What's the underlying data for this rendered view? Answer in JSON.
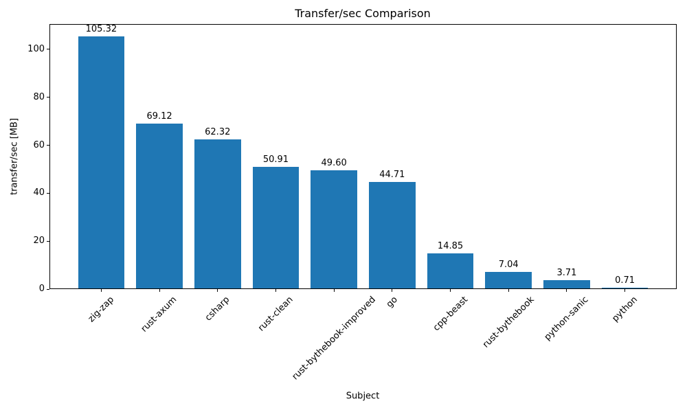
{
  "chart_data": {
    "type": "bar",
    "title": "Transfer/sec Comparison",
    "xlabel": "Subject",
    "ylabel": "transfer/sec [MB]",
    "categories": [
      "zig-zap",
      "rust-axum",
      "csharp",
      "rust-clean",
      "rust-bythebook-improved",
      "go",
      "cpp-beast",
      "rust-bythebook",
      "python-sanic",
      "python"
    ],
    "values": [
      105.32,
      69.12,
      62.32,
      50.91,
      49.6,
      44.71,
      14.85,
      7.04,
      3.71,
      0.71
    ],
    "value_labels": [
      "105.32",
      "69.12",
      "62.32",
      "50.91",
      "49.60",
      "44.71",
      "14.85",
      "7.04",
      "3.71",
      "0.71"
    ],
    "yticks": [
      0,
      20,
      40,
      60,
      80,
      100
    ],
    "ylim": [
      0,
      110.59
    ],
    "bar_color": "#1f77b4",
    "axis_color": "#000000",
    "grid": false,
    "legend_position": "none",
    "x_tick_rotation": 45
  }
}
